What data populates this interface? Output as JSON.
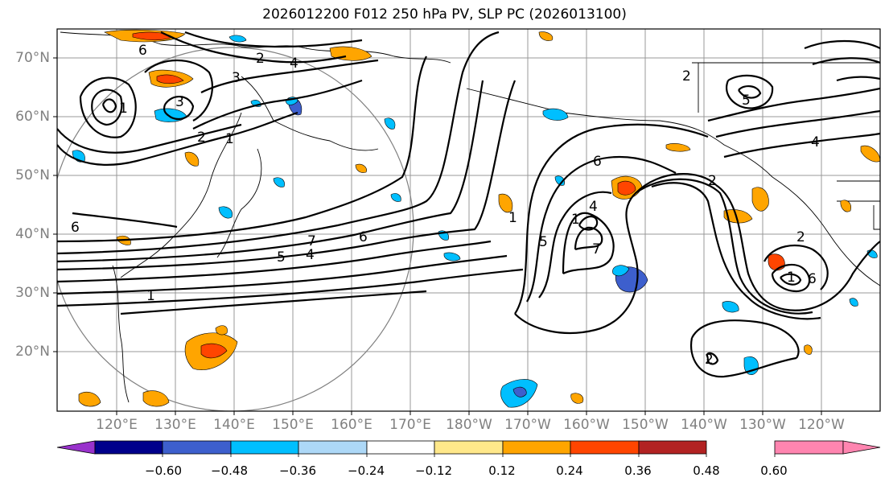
{
  "title": "2026012200 F012 250 hPa PV, SLP PC (2026013100)",
  "lat_labels": [
    "70°N",
    "60°N",
    "50°N",
    "40°N",
    "30°N",
    "20°N"
  ],
  "lon_labels": [
    "120°E",
    "130°E",
    "140°E",
    "150°E",
    "160°E",
    "170°E",
    "180°W",
    "170°W",
    "160°W",
    "150°W",
    "140°W",
    "130°W",
    "120°W"
  ],
  "colorbar": {
    "ticks": [
      "−0.60",
      "−0.48",
      "−0.36",
      "−0.24",
      "−0.12",
      "0.12",
      "0.24",
      "0.36",
      "0.48",
      "0.60"
    ],
    "colors": [
      "#9932cc",
      "#00008b",
      "#3d5fcd",
      "#00bfff",
      "#add8f7",
      "#ffffff",
      "#ffe88a",
      "#ffa500",
      "#ff4500",
      "#b22222",
      "#ff85b0"
    ]
  },
  "contour_labels": [
    "6",
    "2",
    "4",
    "3",
    "3",
    "2",
    "1",
    "6",
    "1",
    "7",
    "6",
    "5",
    "4",
    "2",
    "1",
    "6",
    "4",
    "1",
    "5",
    "7",
    "2",
    "5",
    "4",
    "1",
    "6",
    "2",
    "2",
    "1"
  ],
  "colors": {
    "contour": "#000000",
    "grid": "#999999",
    "circle": "#808080",
    "label": "#808080"
  }
}
